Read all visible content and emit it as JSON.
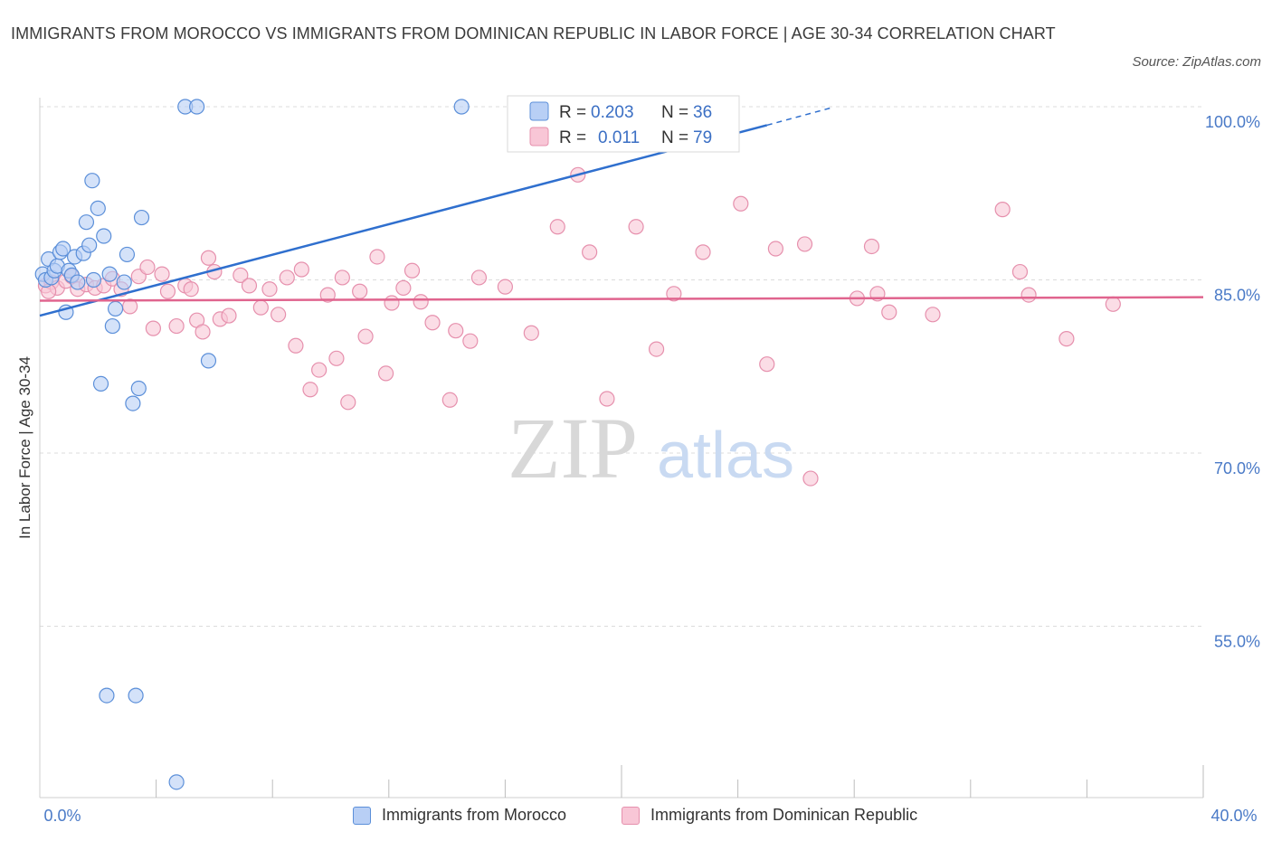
{
  "header": {
    "title": "IMMIGRANTS FROM MOROCCO VS IMMIGRANTS FROM DOMINICAN REPUBLIC IN LABOR FORCE | AGE 30-34 CORRELATION CHART",
    "source": "Source: ZipAtlas.com"
  },
  "watermark": {
    "zip": "ZIP",
    "atlas": "atlas"
  },
  "legend": {
    "r_label": "R =",
    "n_label": "N =",
    "series": [
      {
        "r": "0.203",
        "n": "36"
      },
      {
        "r": "0.011",
        "n": "79"
      }
    ]
  },
  "colors": {
    "morocco_fill": "#b8cff5",
    "morocco_stroke": "#5b8fd9",
    "morocco_line": "#2f6fce",
    "dr_fill": "#f8c6d6",
    "dr_stroke": "#e690ad",
    "dr_line": "#e0648e",
    "grid": "#dcdcdc",
    "axis_text": "#4a7ac7"
  },
  "chart_data": {
    "type": "scatter",
    "title": "IMMIGRANTS FROM MOROCCO VS IMMIGRANTS FROM DOMINICAN REPUBLIC IN LABOR FORCE | AGE 30-34 CORRELATION CHART",
    "xlabel": "",
    "ylabel": "In Labor Force | Age 30-34",
    "xlim": [
      0,
      40
    ],
    "ylim": [
      40,
      100
    ],
    "x_ticks": [
      "0.0%",
      "40.0%"
    ],
    "y_ticks": [
      {
        "value": 100,
        "label": "100.0%"
      },
      {
        "value": 85,
        "label": "85.0%"
      },
      {
        "value": 70,
        "label": "70.0%"
      },
      {
        "value": 55,
        "label": "55.0%"
      }
    ],
    "series": [
      {
        "name": "Immigrants from Morocco",
        "r": 0.203,
        "n": 36,
        "trend": {
          "x0": 0,
          "y0": 81.9,
          "x1": 25,
          "y1": 98.4,
          "dash_x1": 27.2,
          "dash_y1": 99.9
        },
        "points": [
          [
            0.1,
            85.5
          ],
          [
            0.2,
            85.0
          ],
          [
            0.3,
            86.8
          ],
          [
            0.4,
            85.2
          ],
          [
            0.5,
            85.8
          ],
          [
            0.6,
            86.2
          ],
          [
            0.7,
            87.4
          ],
          [
            0.8,
            87.7
          ],
          [
            0.9,
            82.2
          ],
          [
            1.0,
            85.8
          ],
          [
            1.1,
            85.4
          ],
          [
            1.2,
            87.0
          ],
          [
            1.3,
            84.8
          ],
          [
            1.5,
            87.3
          ],
          [
            1.6,
            90.0
          ],
          [
            1.7,
            88.0
          ],
          [
            1.8,
            93.6
          ],
          [
            2.0,
            91.2
          ],
          [
            2.2,
            88.8
          ],
          [
            2.4,
            85.5
          ],
          [
            2.5,
            81.0
          ],
          [
            2.6,
            82.5
          ],
          [
            2.1,
            76.0
          ],
          [
            2.9,
            84.8
          ],
          [
            3.0,
            87.2
          ],
          [
            3.2,
            74.3
          ],
          [
            3.4,
            75.6
          ],
          [
            3.5,
            90.4
          ],
          [
            4.7,
            41.5
          ],
          [
            2.3,
            49.0
          ],
          [
            3.3,
            49.0
          ],
          [
            5.0,
            100
          ],
          [
            5.4,
            100
          ],
          [
            5.8,
            78.0
          ],
          [
            14.5,
            100
          ],
          [
            1.85,
            85.0
          ]
        ]
      },
      {
        "name": "Immigrants from Dominican Republic",
        "r": 0.011,
        "n": 79,
        "trend": {
          "x0": 0,
          "y0": 83.2,
          "x1": 40,
          "y1": 83.5
        },
        "points": [
          [
            0.2,
            84.5
          ],
          [
            0.4,
            84.8
          ],
          [
            0.6,
            84.3
          ],
          [
            0.9,
            84.9
          ],
          [
            1.1,
            85.3
          ],
          [
            1.3,
            84.2
          ],
          [
            1.6,
            84.6
          ],
          [
            1.9,
            84.3
          ],
          [
            2.2,
            84.5
          ],
          [
            2.5,
            85.1
          ],
          [
            2.8,
            84.2
          ],
          [
            3.1,
            82.7
          ],
          [
            3.4,
            85.3
          ],
          [
            3.7,
            86.1
          ],
          [
            3.9,
            80.8
          ],
          [
            4.2,
            85.5
          ],
          [
            4.4,
            84.0
          ],
          [
            4.7,
            81.0
          ],
          [
            5.0,
            84.5
          ],
          [
            5.2,
            84.2
          ],
          [
            5.4,
            81.5
          ],
          [
            5.6,
            80.5
          ],
          [
            5.8,
            86.9
          ],
          [
            6.0,
            85.7
          ],
          [
            6.2,
            81.6
          ],
          [
            6.5,
            81.9
          ],
          [
            6.9,
            85.4
          ],
          [
            7.2,
            84.5
          ],
          [
            7.6,
            82.6
          ],
          [
            7.9,
            84.2
          ],
          [
            8.2,
            82.0
          ],
          [
            8.5,
            85.2
          ],
          [
            8.8,
            79.3
          ],
          [
            9.0,
            85.9
          ],
          [
            9.3,
            75.5
          ],
          [
            9.6,
            77.2
          ],
          [
            9.9,
            83.7
          ],
          [
            10.2,
            78.2
          ],
          [
            10.4,
            85.2
          ],
          [
            10.6,
            74.4
          ],
          [
            11.0,
            84.0
          ],
          [
            11.2,
            80.1
          ],
          [
            11.6,
            87.0
          ],
          [
            11.9,
            76.9
          ],
          [
            12.1,
            83.0
          ],
          [
            12.5,
            84.3
          ],
          [
            12.8,
            85.8
          ],
          [
            13.1,
            83.1
          ],
          [
            13.5,
            81.3
          ],
          [
            14.1,
            74.6
          ],
          [
            14.3,
            80.6
          ],
          [
            14.8,
            79.7
          ],
          [
            15.1,
            85.2
          ],
          [
            16.0,
            84.4
          ],
          [
            16.9,
            80.4
          ],
          [
            17.8,
            89.6
          ],
          [
            18.5,
            94.1
          ],
          [
            18.9,
            87.4
          ],
          [
            19.5,
            74.7
          ],
          [
            20.5,
            89.6
          ],
          [
            21.2,
            79.0
          ],
          [
            21.8,
            83.8
          ],
          [
            22.8,
            87.4
          ],
          [
            24.1,
            91.6
          ],
          [
            25.0,
            77.7
          ],
          [
            25.3,
            87.7
          ],
          [
            26.3,
            88.1
          ],
          [
            26.5,
            67.8
          ],
          [
            28.1,
            83.4
          ],
          [
            28.6,
            87.9
          ],
          [
            28.8,
            83.8
          ],
          [
            29.2,
            82.2
          ],
          [
            30.7,
            82.0
          ],
          [
            33.1,
            91.1
          ],
          [
            33.7,
            85.7
          ],
          [
            34.0,
            83.7
          ],
          [
            35.3,
            79.9
          ],
          [
            36.9,
            82.9
          ],
          [
            0.3,
            84.0
          ]
        ]
      }
    ]
  },
  "bottom_legend": {
    "morocco": "Immigrants from Morocco",
    "dominican": "Immigrants from Dominican Republic"
  }
}
